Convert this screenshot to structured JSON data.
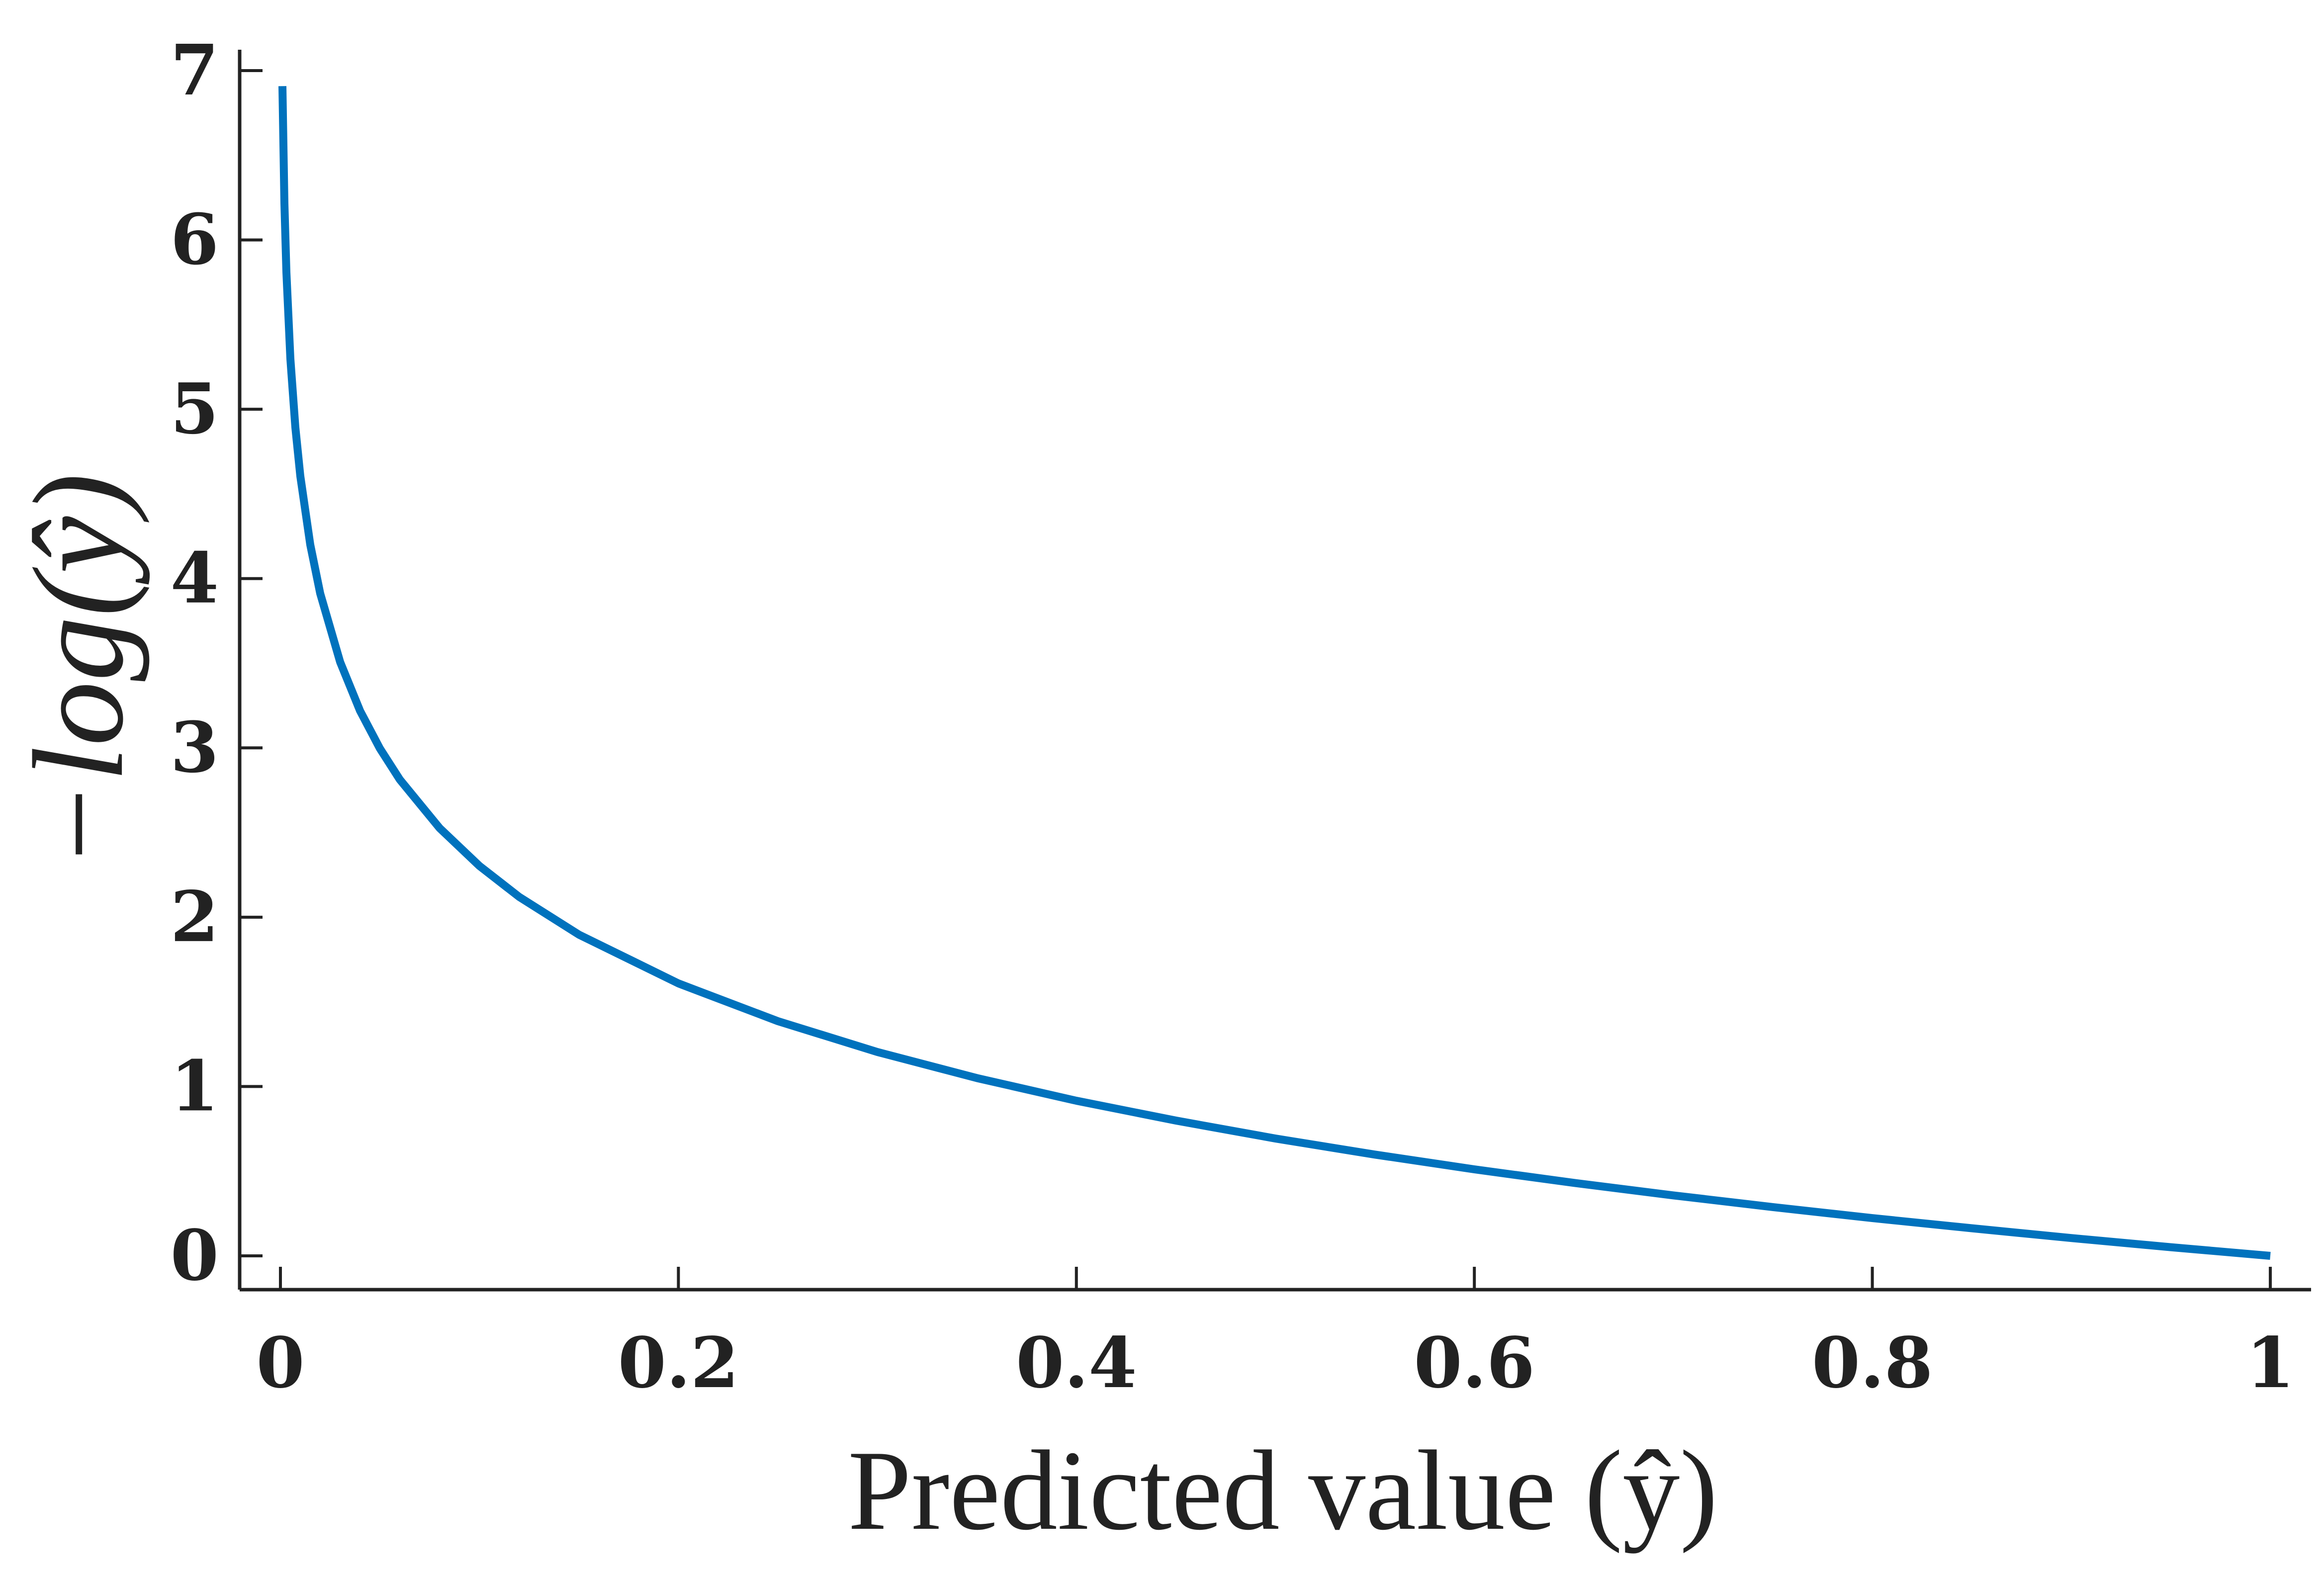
{
  "chart_data": {
    "type": "line",
    "title": "",
    "xlabel": "Predicted value (ŷ)",
    "ylabel": "−log(ŷ)",
    "xlim": [
      0,
      1
    ],
    "ylim": [
      0,
      7
    ],
    "xticks": [
      0,
      0.2,
      0.4,
      0.6,
      0.8,
      1
    ],
    "xtick_labels": [
      "0",
      "0.2",
      "0.4",
      "0.6",
      "0.8",
      "1"
    ],
    "yticks": [
      0,
      1,
      2,
      3,
      4,
      5,
      6,
      7
    ],
    "ytick_labels": [
      "0",
      "1",
      "2",
      "3",
      "4",
      "5",
      "6",
      "7"
    ],
    "grid": false,
    "legend": "none",
    "series": [
      {
        "color": "#0072BD",
        "x": [
          0.001,
          0.002,
          0.003,
          0.005,
          0.0075,
          0.01,
          0.015,
          0.02,
          0.03,
          0.04,
          0.05,
          0.06,
          0.08,
          0.1,
          0.12,
          0.15,
          0.2,
          0.25,
          0.3,
          0.35,
          0.4,
          0.45,
          0.5,
          0.55,
          0.6,
          0.65,
          0.7,
          0.75,
          0.8,
          0.85,
          0.9,
          0.95,
          1.0
        ],
        "y": [
          6.908,
          6.215,
          5.809,
          5.298,
          4.893,
          4.605,
          4.2,
          3.912,
          3.507,
          3.219,
          2.996,
          2.813,
          2.526,
          2.303,
          2.12,
          1.897,
          1.609,
          1.386,
          1.204,
          1.05,
          0.916,
          0.799,
          0.693,
          0.598,
          0.511,
          0.431,
          0.357,
          0.288,
          0.223,
          0.163,
          0.105,
          0.051,
          0.0
        ]
      }
    ]
  }
}
